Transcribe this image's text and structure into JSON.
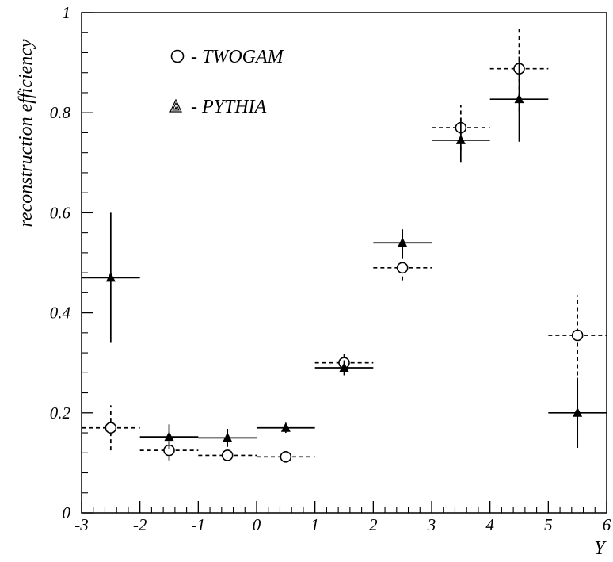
{
  "chart_data": {
    "type": "scatter",
    "xlabel": "Y",
    "ylabel": "reconstruction efficiency",
    "xlim": [
      -3,
      6
    ],
    "ylim": [
      0,
      1
    ],
    "x_major_ticks": [
      -3,
      -2,
      -1,
      0,
      1,
      2,
      3,
      4,
      5,
      6
    ],
    "x_tick_labels": [
      "-3",
      "-2",
      "-1",
      "0",
      "1",
      "2",
      "3",
      "4",
      "5",
      "6"
    ],
    "y_major_ticks": [
      0,
      0.2,
      0.4,
      0.6,
      0.8,
      1
    ],
    "y_tick_labels": [
      "0",
      "0.2",
      "0.4",
      "0.6",
      "0.8",
      "1"
    ],
    "bin_half_width": 0.5,
    "grid": false,
    "legend_position": "top-left",
    "series": [
      {
        "name": "TWOGAM",
        "legend_label": "- TWOGAM",
        "marker": "open-circle",
        "line_style": "dashed",
        "x": [
          -2.5,
          -1.5,
          -0.5,
          0.5,
          1.5,
          2.5,
          3.5,
          4.5,
          5.5
        ],
        "y": [
          0.17,
          0.125,
          0.115,
          0.112,
          0.3,
          0.49,
          0.77,
          0.888,
          0.355
        ],
        "y_err": [
          0.045,
          0.02,
          0.008,
          0.008,
          0.018,
          0.025,
          0.045,
          0.085,
          0.08
        ]
      },
      {
        "name": "PYTHIA",
        "legend_label": "- PYTHIA",
        "marker": "filled-triangle",
        "line_style": "solid",
        "x": [
          -2.5,
          -1.5,
          -0.5,
          0.5,
          1.5,
          2.5,
          3.5,
          4.5,
          5.5
        ],
        "y": [
          0.47,
          0.152,
          0.15,
          0.17,
          0.29,
          0.54,
          0.745,
          0.827,
          0.2
        ],
        "y_err": [
          0.13,
          0.025,
          0.018,
          0.01,
          0.015,
          0.027,
          0.045,
          0.085,
          0.07
        ]
      }
    ]
  }
}
